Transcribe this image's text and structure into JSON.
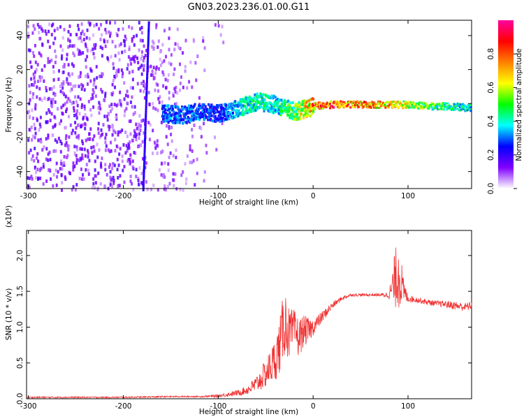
{
  "title": "GN03.2023.236.01.00.G11",
  "colors": {
    "snr_line": "#f03030",
    "axis": "#000000"
  },
  "chart_data": [
    {
      "type": "heatmap",
      "title": "GN03.2023.236.01.00.G11",
      "xlabel": "Height of straight line (km)",
      "ylabel": "Frequency (Hz)",
      "xlim": [
        -302,
        167
      ],
      "ylim": [
        -50,
        49
      ],
      "x_ticks": [
        -300,
        -200,
        -100,
        0,
        100
      ],
      "x_tick_labels": [
        "-300",
        "-200",
        "-100",
        "0",
        "100"
      ],
      "y_ticks": [
        -40,
        -20,
        0,
        20,
        40
      ],
      "y_tick_labels": [
        "-40",
        "-20",
        "0",
        "20",
        "40"
      ],
      "colorbar": {
        "label": "Normalized spectral amplitude",
        "range": [
          0,
          1
        ],
        "ticks": [
          0.0,
          0.2,
          0.4,
          0.6,
          0.8
        ],
        "tick_labels": [
          "0.0",
          "0.2",
          "0.4",
          "0.6",
          "0.8"
        ],
        "colormap": [
          "#ffffff",
          "#8000ff",
          "#0000ff",
          "#00ffff",
          "#00ff00",
          "#ffff00",
          "#ff8000",
          "#ff0000",
          "#ff00a0"
        ]
      },
      "features": {
        "carrier_track": {
          "x": [
            -160,
            -140,
            -120,
            -100,
            -80,
            -60,
            -40,
            -20,
            0,
            20,
            40,
            60,
            80,
            100,
            120,
            140,
            165
          ],
          "freq": [
            -5,
            -6,
            -4,
            -5,
            -2,
            2,
            0,
            -4,
            -1,
            0,
            0,
            0,
            0,
            0,
            -1,
            -1,
            -2
          ],
          "amplitude": [
            0.35,
            0.35,
            0.35,
            0.3,
            0.45,
            0.5,
            0.45,
            0.6,
            0.85,
            0.95,
            0.9,
            0.85,
            0.8,
            0.7,
            0.6,
            0.5,
            0.45
          ]
        },
        "vertical_line": {
          "x": -180,
          "freq_range": [
            -50,
            49
          ]
        }
      }
    },
    {
      "type": "line",
      "xlabel": "Height of straight line (km)",
      "ylabel": "SNR (10 * v/v)",
      "y_scale_label": "(x10⁴)",
      "xlim": [
        -302,
        167
      ],
      "ylim": [
        0,
        2.35
      ],
      "x_ticks": [
        -300,
        -200,
        -100,
        0,
        100
      ],
      "x_tick_labels": [
        "-300",
        "-200",
        "-100",
        "0",
        "100"
      ],
      "y_ticks": [
        0.0,
        0.5,
        1.0,
        1.5,
        2.0
      ],
      "y_tick_labels": [
        "0.0",
        "0.5",
        "1.0",
        "1.5",
        "2.0"
      ],
      "series": [
        {
          "color": "#f03030",
          "x": [
            -302,
            -250,
            -200,
            -150,
            -120,
            -100,
            -80,
            -70,
            -60,
            -50,
            -40,
            -35,
            -30,
            -25,
            -20,
            -15,
            -10,
            -5,
            0,
            10,
            20,
            30,
            40,
            50,
            60,
            70,
            80,
            85,
            90,
            95,
            100,
            110,
            120,
            130,
            140,
            150,
            160,
            167
          ],
          "y": [
            0.02,
            0.02,
            0.02,
            0.03,
            0.03,
            0.04,
            0.08,
            0.12,
            0.2,
            0.35,
            0.55,
            0.75,
            1.1,
            0.9,
            0.95,
            0.85,
            0.95,
            0.95,
            1.0,
            1.15,
            1.3,
            1.4,
            1.45,
            1.45,
            1.45,
            1.45,
            1.45,
            1.6,
            1.8,
            1.5,
            1.4,
            1.38,
            1.35,
            1.33,
            1.32,
            1.3,
            1.28,
            1.3
          ],
          "noise_amp": [
            0.01,
            0.01,
            0.01,
            0.01,
            0.01,
            0.02,
            0.04,
            0.06,
            0.12,
            0.2,
            0.3,
            0.4,
            0.5,
            0.35,
            0.3,
            0.28,
            0.22,
            0.18,
            0.12,
            0.08,
            0.05,
            0.03,
            0.02,
            0.02,
            0.02,
            0.02,
            0.05,
            0.35,
            0.55,
            0.2,
            0.05,
            0.04,
            0.04,
            0.04,
            0.05,
            0.06,
            0.06,
            0.06
          ]
        }
      ]
    }
  ]
}
